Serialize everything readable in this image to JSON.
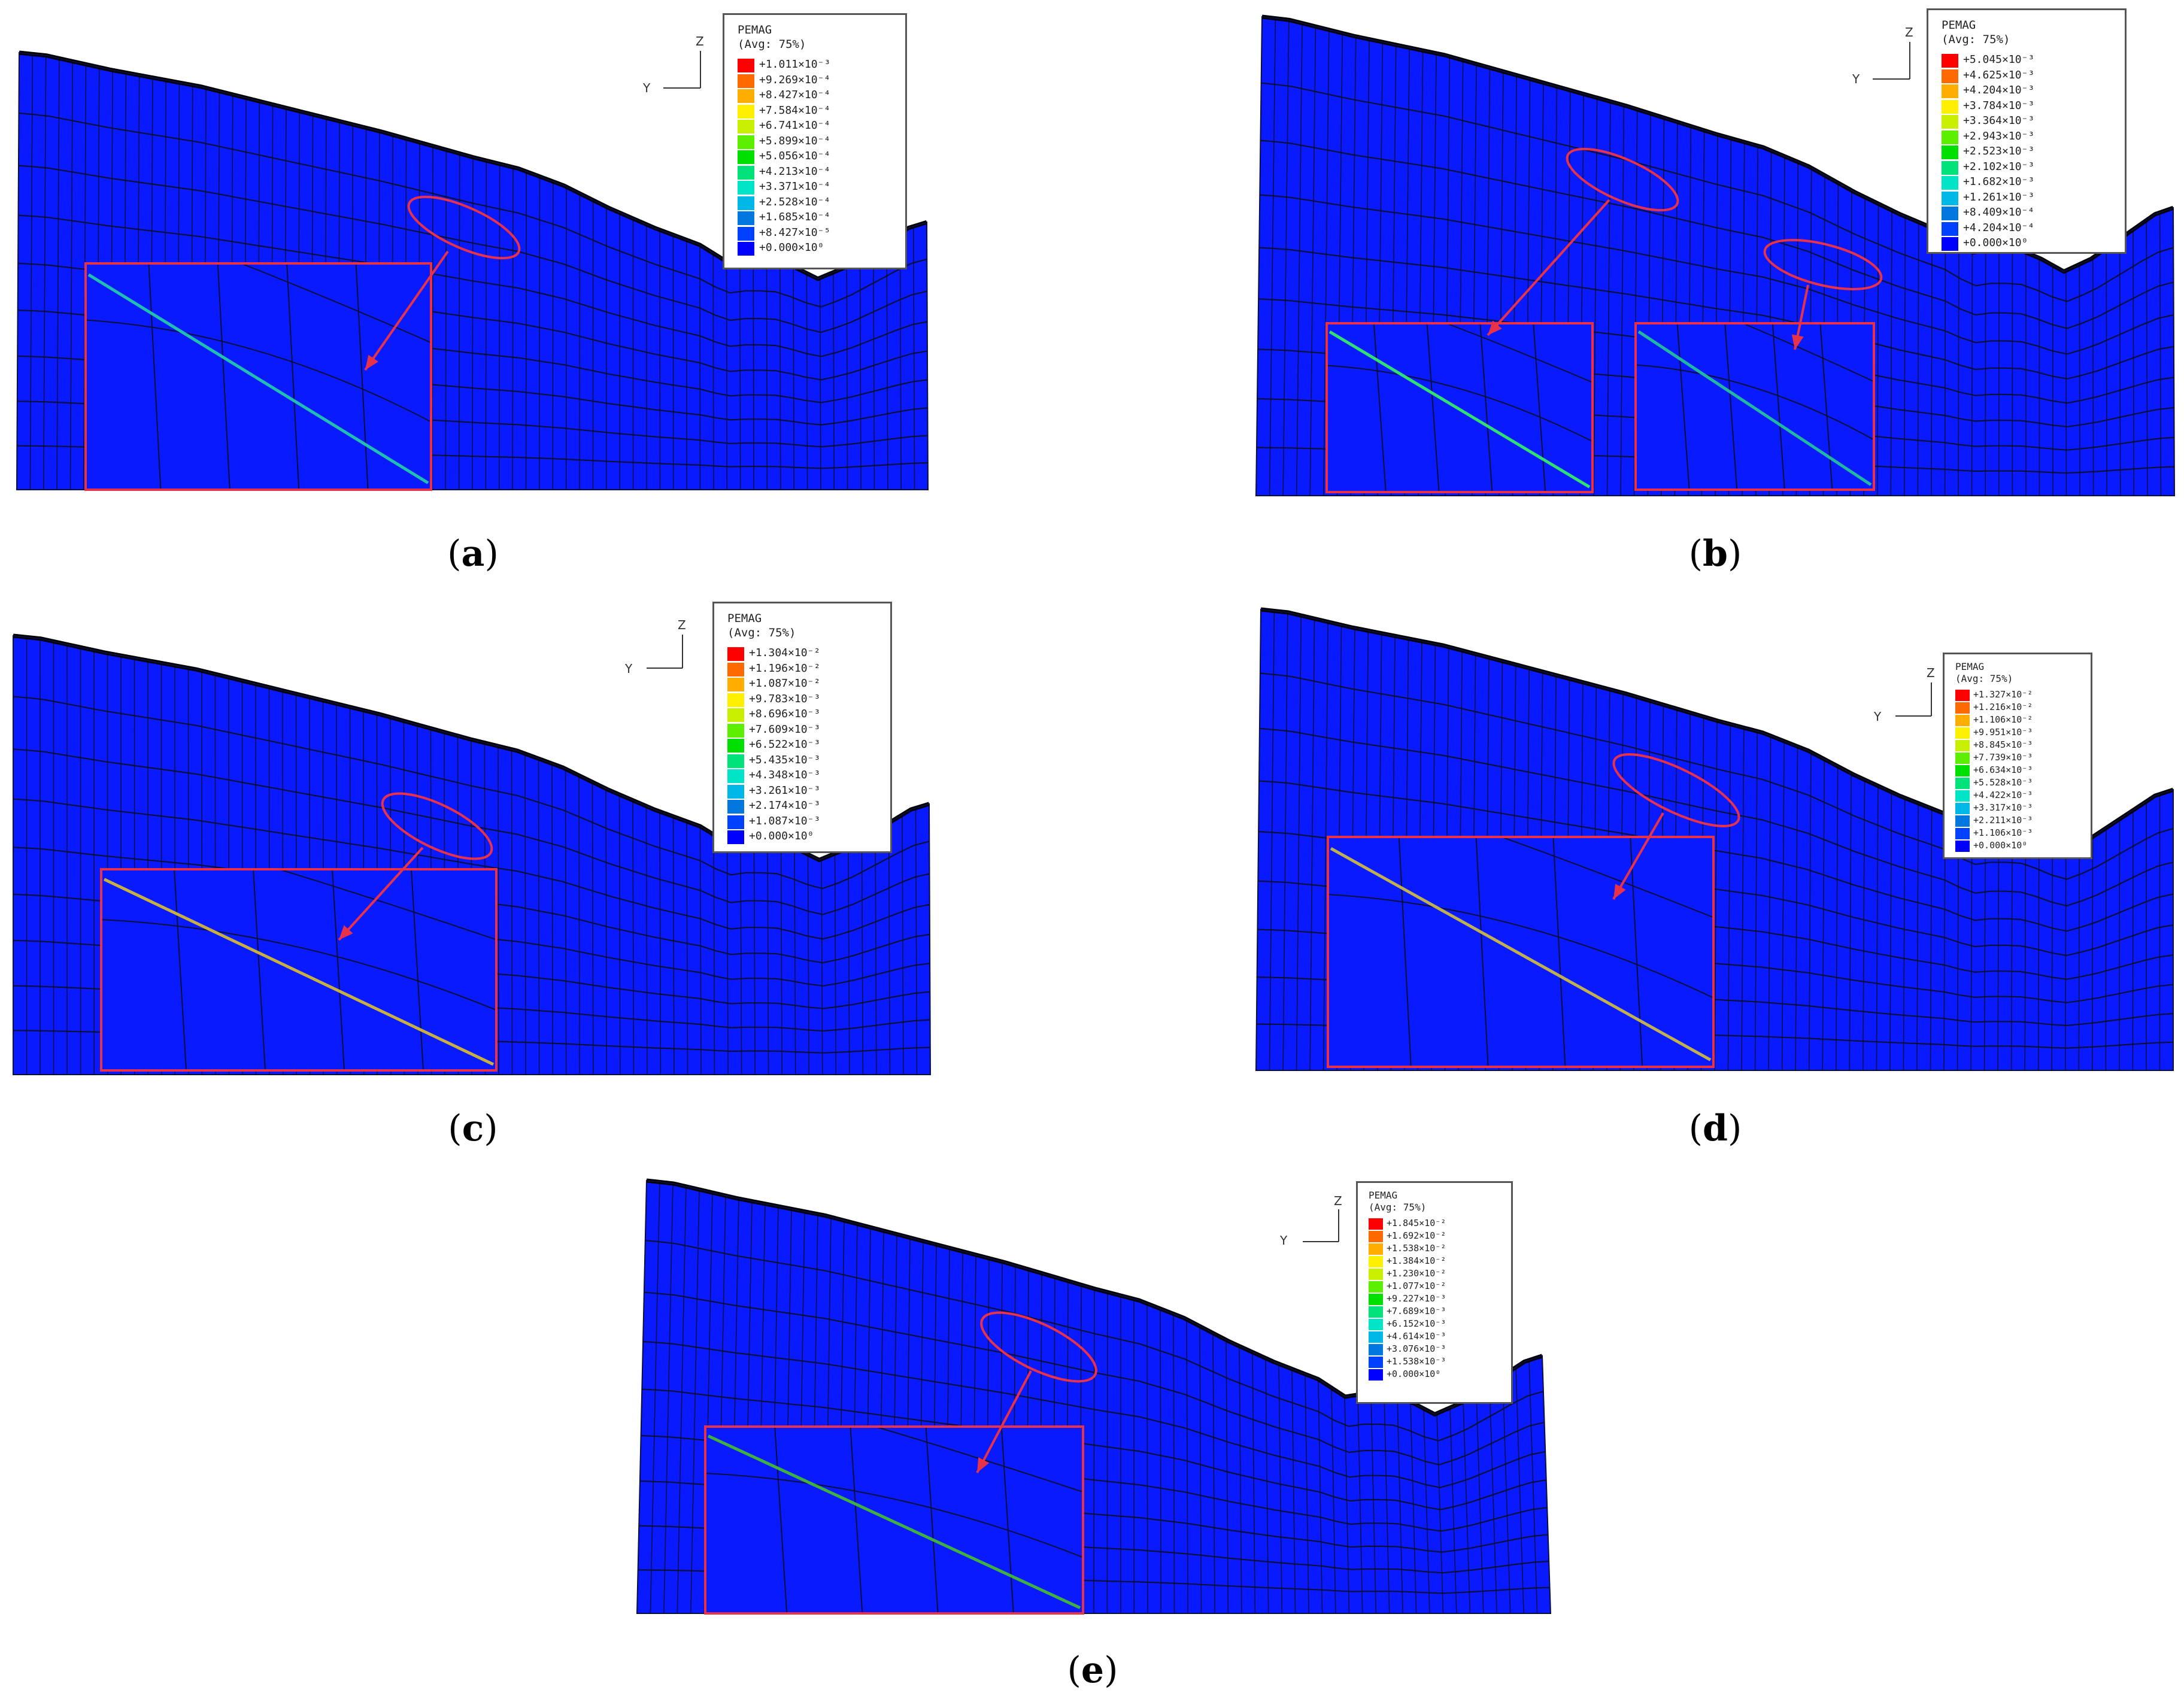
{
  "colors": {
    "mesh_fill": "#0a1aff",
    "mesh_line": "#0b0f3a",
    "highlight": "#e8324a",
    "outline": "#000000"
  },
  "legend_colors": [
    "#ff0000",
    "#ff6a00",
    "#ffae00",
    "#fff000",
    "#c8f000",
    "#5cf000",
    "#00e000",
    "#00e27a",
    "#00e4c8",
    "#00b8e8",
    "#0078e0",
    "#0040ff",
    "#0000ff"
  ],
  "panels": [
    {
      "caption": "a",
      "legend": {
        "title": "PEMAG",
        "avg": "(Avg: 75%)",
        "values": [
          "+1.011×10⁻³",
          "+9.269×10⁻⁴",
          "+8.427×10⁻⁴",
          "+7.584×10⁻⁴",
          "+6.741×10⁻⁴",
          "+5.899×10⁻⁴",
          "+5.056×10⁻⁴",
          "+4.213×10⁻⁴",
          "+3.371×10⁻⁴",
          "+2.528×10⁻⁴",
          "+1.685×10⁻⁴",
          "+8.427×10⁻⁵",
          "+0.000×10⁰"
        ]
      },
      "axes": {
        "y": "Y",
        "z": "Z"
      }
    },
    {
      "caption": "b",
      "legend": {
        "title": "PEMAG",
        "avg": "(Avg: 75%)",
        "values": [
          "+5.045×10⁻³",
          "+4.625×10⁻³",
          "+4.204×10⁻³",
          "+3.784×10⁻³",
          "+3.364×10⁻³",
          "+2.943×10⁻³",
          "+2.523×10⁻³",
          "+2.102×10⁻³",
          "+1.682×10⁻³",
          "+1.261×10⁻³",
          "+8.409×10⁻⁴",
          "+4.204×10⁻⁴",
          "+0.000×10⁰"
        ]
      },
      "axes": {
        "y": "Y",
        "z": "Z"
      }
    },
    {
      "caption": "c",
      "legend": {
        "title": "PEMAG",
        "avg": "(Avg: 75%)",
        "values": [
          "+1.304×10⁻²",
          "+1.196×10⁻²",
          "+1.087×10⁻²",
          "+9.783×10⁻³",
          "+8.696×10⁻³",
          "+7.609×10⁻³",
          "+6.522×10⁻³",
          "+5.435×10⁻³",
          "+4.348×10⁻³",
          "+3.261×10⁻³",
          "+2.174×10⁻³",
          "+1.087×10⁻³",
          "+0.000×10⁰"
        ]
      },
      "axes": {
        "y": "Y",
        "z": "Z"
      }
    },
    {
      "caption": "d",
      "legend": {
        "title": "PEMAG",
        "avg": "(Avg: 75%)",
        "values": [
          "+1.327×10⁻²",
          "+1.216×10⁻²",
          "+1.106×10⁻²",
          "+9.951×10⁻³",
          "+8.845×10⁻³",
          "+7.739×10⁻³",
          "+6.634×10⁻³",
          "+5.528×10⁻³",
          "+4.422×10⁻³",
          "+3.317×10⁻³",
          "+2.211×10⁻³",
          "+1.106×10⁻³",
          "+0.000×10⁰"
        ]
      },
      "axes": {
        "y": "Y",
        "z": "Z"
      }
    },
    {
      "caption": "e",
      "legend": {
        "title": "PEMAG",
        "avg": "(Avg: 75%)",
        "values": [
          "+1.845×10⁻²",
          "+1.692×10⁻²",
          "+1.538×10⁻²",
          "+1.384×10⁻²",
          "+1.230×10⁻²",
          "+1.077×10⁻²",
          "+9.227×10⁻³",
          "+7.689×10⁻³",
          "+6.152×10⁻³",
          "+4.614×10⁻³",
          "+3.076×10⁻³",
          "+1.538×10⁻³",
          "+0.000×10⁰"
        ]
      },
      "axes": {
        "y": "Y",
        "z": "Z"
      }
    }
  ]
}
